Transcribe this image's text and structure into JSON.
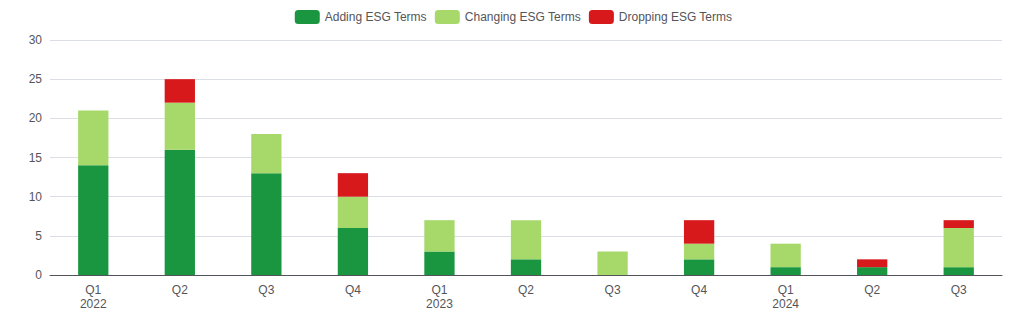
{
  "chart_data": {
    "type": "bar",
    "stacked": true,
    "categories": [
      "Q1\n2022",
      "Q2",
      "Q3",
      "Q4",
      "Q1\n2023",
      "Q2",
      "Q3",
      "Q4",
      "Q1\n2024",
      "Q2",
      "Q3"
    ],
    "series": [
      {
        "name": "Adding ESG Terms",
        "color": "#1a9641",
        "values": [
          14,
          16,
          13,
          6,
          3,
          2,
          0,
          2,
          1,
          1,
          1
        ]
      },
      {
        "name": "Changing ESG Terms",
        "color": "#a6d96a",
        "values": [
          7,
          6,
          5,
          4,
          4,
          5,
          3,
          2,
          3,
          0,
          5
        ]
      },
      {
        "name": "Dropping ESG Terms",
        "color": "#d7191c",
        "values": [
          0,
          3,
          0,
          3,
          0,
          0,
          0,
          3,
          0,
          1,
          1
        ]
      }
    ],
    "ylim": [
      0,
      30
    ],
    "yticks": [
      0,
      5,
      10,
      15,
      20,
      25,
      30
    ],
    "grid": true,
    "legend": "top"
  }
}
